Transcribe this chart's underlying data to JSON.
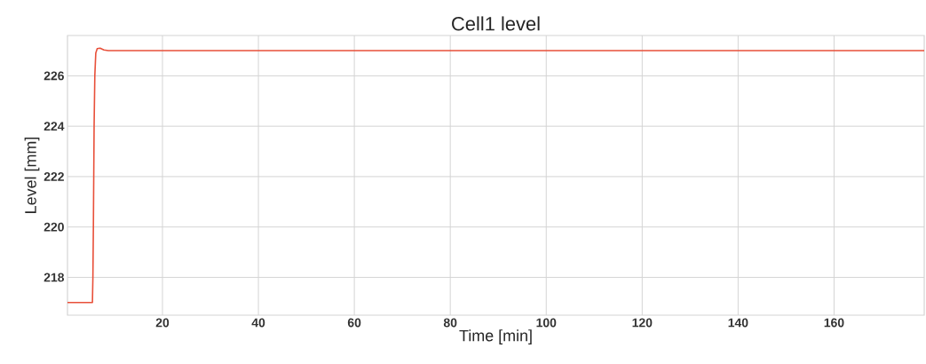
{
  "chart_data": {
    "type": "line",
    "title": "Cell1 level",
    "xlabel": "Time [min]",
    "ylabel": "Level [mm]",
    "x": [
      0.2,
      5.4,
      5.5,
      5.6,
      5.75,
      5.9,
      6.1,
      6.4,
      7,
      7.8,
      8.7,
      178.8
    ],
    "series": [
      {
        "color": "#e8503a",
        "values": [
          217,
          217,
          218,
          220,
          224,
          226,
          226.9,
          227.08,
          227.1,
          227.03,
          227,
          227
        ]
      }
    ],
    "xlim": [
      0.2,
      178.8
    ],
    "ylim": [
      216.5,
      227.6
    ],
    "xticks": [
      20,
      40,
      60,
      80,
      100,
      120,
      140,
      160
    ],
    "yticks": [
      218,
      220,
      222,
      224,
      226
    ],
    "grid": true,
    "marker": "none",
    "line_style": "solid"
  }
}
